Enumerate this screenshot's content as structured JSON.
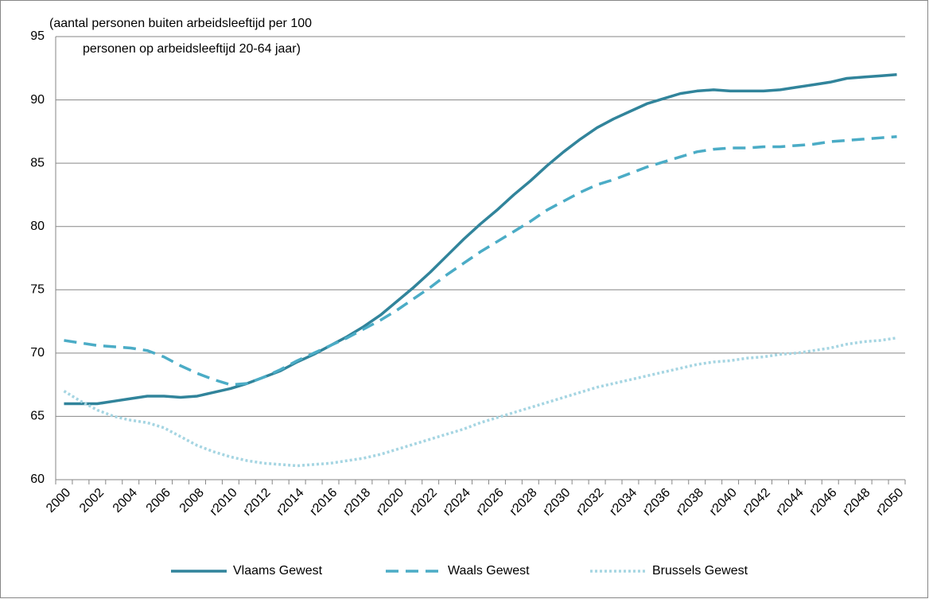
{
  "chart_data": {
    "type": "line",
    "annotation": [
      "(aantal personen buiten arbeidsleeftijd per 100",
      "personen op arbeidsleeftijd 20-64 jaar)"
    ],
    "categories": [
      "2000",
      null,
      "2002",
      null,
      "2004",
      null,
      "2006",
      null,
      "2008",
      null,
      "r2010",
      null,
      "r2012",
      null,
      "r2014",
      null,
      "r2016",
      null,
      "r2018",
      null,
      "r2020",
      null,
      "r2022",
      null,
      "r2024",
      null,
      "r2026",
      null,
      "r2028",
      null,
      "r2030",
      null,
      "r2032",
      null,
      "r2034",
      null,
      "r2036",
      null,
      "r2038",
      null,
      "r2040",
      null,
      "r2042",
      null,
      "r2044",
      null,
      "r2046",
      null,
      "r2048",
      null,
      "r2050"
    ],
    "series": [
      {
        "name": "Vlaams Gewest",
        "color": "#31849b",
        "style": "solid",
        "values": [
          66.0,
          66.0,
          66.0,
          66.2,
          66.4,
          66.6,
          66.6,
          66.5,
          66.6,
          66.9,
          67.2,
          67.6,
          68.1,
          68.6,
          69.3,
          69.9,
          70.6,
          71.3,
          72.1,
          73.0,
          74.1,
          75.2,
          76.4,
          77.7,
          79.0,
          80.2,
          81.3,
          82.5,
          83.6,
          84.8,
          85.9,
          86.9,
          87.8,
          88.5,
          89.1,
          89.7,
          90.1,
          90.5,
          90.7,
          90.8,
          90.7,
          90.7,
          90.7,
          90.8,
          91.0,
          91.2,
          91.4,
          91.7,
          91.8,
          91.9,
          92.0
        ]
      },
      {
        "name": "Waals Gewest",
        "color": "#4bacc6",
        "style": "dashed",
        "values": [
          71.0,
          70.8,
          70.6,
          70.5,
          70.4,
          70.2,
          69.7,
          69.0,
          68.4,
          67.9,
          67.5,
          67.6,
          68.1,
          68.7,
          69.4,
          70.0,
          70.6,
          71.2,
          71.9,
          72.6,
          73.4,
          74.3,
          75.2,
          76.2,
          77.1,
          78.0,
          78.8,
          79.6,
          80.4,
          81.3,
          82.0,
          82.7,
          83.3,
          83.7,
          84.2,
          84.7,
          85.1,
          85.5,
          85.9,
          86.1,
          86.2,
          86.2,
          86.3,
          86.3,
          86.4,
          86.5,
          86.7,
          86.8,
          86.9,
          87.0,
          87.1
        ]
      },
      {
        "name": "Brussels Gewest",
        "color": "#a5d5e2",
        "style": "dotted",
        "values": [
          67.0,
          66.2,
          65.5,
          65.0,
          64.7,
          64.5,
          64.1,
          63.4,
          62.7,
          62.2,
          61.8,
          61.5,
          61.3,
          61.2,
          61.1,
          61.2,
          61.3,
          61.5,
          61.7,
          62.0,
          62.4,
          62.8,
          63.2,
          63.6,
          64.0,
          64.5,
          64.9,
          65.3,
          65.7,
          66.1,
          66.5,
          66.9,
          67.3,
          67.6,
          67.9,
          68.2,
          68.5,
          68.8,
          69.1,
          69.3,
          69.4,
          69.6,
          69.7,
          69.9,
          70.0,
          70.2,
          70.4,
          70.7,
          70.9,
          71.0,
          71.2
        ]
      }
    ],
    "ylim": [
      60,
      95
    ],
    "yticks": [
      60,
      65,
      70,
      75,
      80,
      85,
      90,
      95
    ],
    "grid": true,
    "legend": "bottom"
  }
}
